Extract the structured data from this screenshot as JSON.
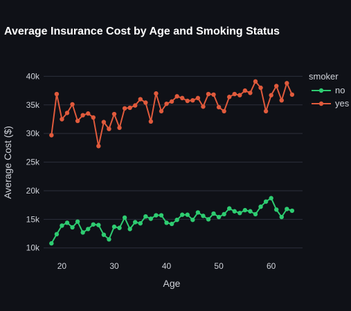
{
  "chart_data": {
    "type": "line",
    "title": "Average Insurance Cost by Age and Smoking Status",
    "xlabel": "Age",
    "ylabel": "Average Cost ($)",
    "xlim": [
      16.5,
      66
    ],
    "ylim": [
      9000,
      41500
    ],
    "x_ticks": [
      20,
      30,
      40,
      50,
      60
    ],
    "y_ticks": [
      10000,
      15000,
      20000,
      25000,
      30000,
      35000,
      40000
    ],
    "y_tick_labels": [
      "10k",
      "15k",
      "20k",
      "25k",
      "30k",
      "35k",
      "40k"
    ],
    "grid": true,
    "legend": {
      "title": "smoker",
      "placement": "right"
    },
    "x": [
      18,
      19,
      20,
      21,
      22,
      23,
      24,
      25,
      26,
      27,
      28,
      29,
      30,
      31,
      32,
      33,
      34,
      35,
      36,
      37,
      38,
      39,
      40,
      41,
      42,
      43,
      44,
      45,
      46,
      47,
      48,
      49,
      50,
      51,
      52,
      53,
      54,
      55,
      56,
      57,
      58,
      59,
      60,
      61,
      62,
      63,
      64
    ],
    "series": [
      {
        "name": "no",
        "color": "#2ecc71",
        "values": [
          10800,
          12400,
          13900,
          14400,
          13600,
          14600,
          12700,
          13300,
          14100,
          14000,
          12300,
          11500,
          13700,
          13500,
          15300,
          13300,
          14500,
          14300,
          15500,
          15100,
          15700,
          15700,
          14400,
          14200,
          14900,
          15800,
          15800,
          14900,
          16200,
          15600,
          15000,
          16000,
          15400,
          15900,
          16900,
          16400,
          16100,
          16600,
          16400,
          15900,
          17200,
          18100,
          18700,
          16700,
          15400,
          16800,
          16500
        ]
      },
      {
        "name": "yes",
        "color": "#e05a3c",
        "values": [
          29700,
          36900,
          32500,
          33600,
          35100,
          32200,
          33200,
          33500,
          32800,
          27800,
          32000,
          30800,
          33400,
          31000,
          34400,
          34500,
          34900,
          36000,
          35400,
          32100,
          37000,
          33900,
          35200,
          35600,
          36500,
          36200,
          35700,
          35800,
          36200,
          34700,
          36900,
          36800,
          34600,
          33900,
          36400,
          36900,
          36700,
          37500,
          37100,
          39100,
          38000,
          33900,
          36700,
          38300,
          35800,
          38800,
          36800
        ]
      }
    ]
  }
}
